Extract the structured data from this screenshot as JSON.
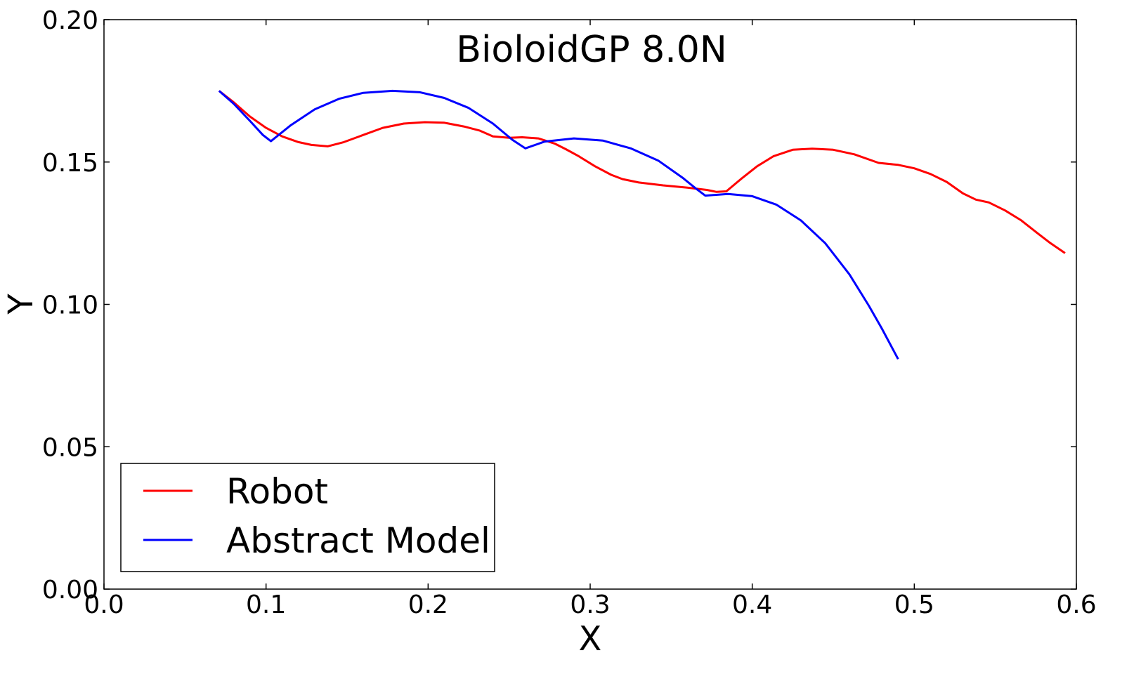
{
  "chart_data": {
    "type": "line",
    "title": "BioloidGP 8.0N",
    "xlabel": "X",
    "ylabel": "Y",
    "xlim": [
      0.0,
      0.6
    ],
    "ylim": [
      0.0,
      0.2
    ],
    "xticks": [
      "0.0",
      "0.1",
      "0.2",
      "0.3",
      "0.4",
      "0.5",
      "0.6"
    ],
    "yticks": [
      "0.00",
      "0.05",
      "0.10",
      "0.15",
      "0.20"
    ],
    "grid": false,
    "legend_position": "lower-left",
    "series": [
      {
        "name": "Robot",
        "color": "#ff0000",
        "points": [
          [
            0.071,
            0.175
          ],
          [
            0.08,
            0.171
          ],
          [
            0.09,
            0.166
          ],
          [
            0.1,
            0.162
          ],
          [
            0.11,
            0.159
          ],
          [
            0.12,
            0.157
          ],
          [
            0.128,
            0.156
          ],
          [
            0.138,
            0.1555
          ],
          [
            0.148,
            0.157
          ],
          [
            0.16,
            0.1595
          ],
          [
            0.172,
            0.162
          ],
          [
            0.185,
            0.1635
          ],
          [
            0.198,
            0.164
          ],
          [
            0.21,
            0.1638
          ],
          [
            0.222,
            0.1625
          ],
          [
            0.232,
            0.161
          ],
          [
            0.24,
            0.159
          ],
          [
            0.25,
            0.1585
          ],
          [
            0.258,
            0.1587
          ],
          [
            0.268,
            0.1583
          ],
          [
            0.278,
            0.1565
          ],
          [
            0.285,
            0.1545
          ],
          [
            0.293,
            0.152
          ],
          [
            0.303,
            0.1485
          ],
          [
            0.313,
            0.1455
          ],
          [
            0.32,
            0.144
          ],
          [
            0.33,
            0.1428
          ],
          [
            0.345,
            0.1418
          ],
          [
            0.36,
            0.141
          ],
          [
            0.372,
            0.1402
          ],
          [
            0.378,
            0.1395
          ],
          [
            0.384,
            0.1397
          ],
          [
            0.393,
            0.144
          ],
          [
            0.403,
            0.1485
          ],
          [
            0.413,
            0.152
          ],
          [
            0.425,
            0.1543
          ],
          [
            0.437,
            0.1547
          ],
          [
            0.45,
            0.1543
          ],
          [
            0.463,
            0.1527
          ],
          [
            0.478,
            0.1497
          ],
          [
            0.49,
            0.149
          ],
          [
            0.5,
            0.1478
          ],
          [
            0.51,
            0.1458
          ],
          [
            0.52,
            0.143
          ],
          [
            0.53,
            0.139
          ],
          [
            0.538,
            0.1368
          ],
          [
            0.546,
            0.1358
          ],
          [
            0.556,
            0.133
          ],
          [
            0.566,
            0.1295
          ],
          [
            0.576,
            0.125
          ],
          [
            0.584,
            0.1215
          ],
          [
            0.593,
            0.118
          ]
        ]
      },
      {
        "name": "Abstract Model",
        "color": "#0000ff",
        "points": [
          [
            0.071,
            0.175
          ],
          [
            0.08,
            0.1705
          ],
          [
            0.09,
            0.1645
          ],
          [
            0.098,
            0.1595
          ],
          [
            0.103,
            0.1573
          ],
          [
            0.115,
            0.1628
          ],
          [
            0.13,
            0.1685
          ],
          [
            0.145,
            0.1722
          ],
          [
            0.16,
            0.1743
          ],
          [
            0.178,
            0.175
          ],
          [
            0.195,
            0.1745
          ],
          [
            0.21,
            0.1725
          ],
          [
            0.225,
            0.169
          ],
          [
            0.24,
            0.1635
          ],
          [
            0.252,
            0.1578
          ],
          [
            0.26,
            0.1548
          ],
          [
            0.272,
            0.1572
          ],
          [
            0.29,
            0.1583
          ],
          [
            0.308,
            0.1575
          ],
          [
            0.325,
            0.1548
          ],
          [
            0.342,
            0.1505
          ],
          [
            0.357,
            0.1445
          ],
          [
            0.365,
            0.1408
          ],
          [
            0.371,
            0.1382
          ],
          [
            0.385,
            0.1388
          ],
          [
            0.4,
            0.138
          ],
          [
            0.415,
            0.135
          ],
          [
            0.43,
            0.1295
          ],
          [
            0.445,
            0.1215
          ],
          [
            0.46,
            0.1105
          ],
          [
            0.472,
            0.0995
          ],
          [
            0.48,
            0.0915
          ],
          [
            0.49,
            0.0808
          ]
        ]
      }
    ]
  }
}
